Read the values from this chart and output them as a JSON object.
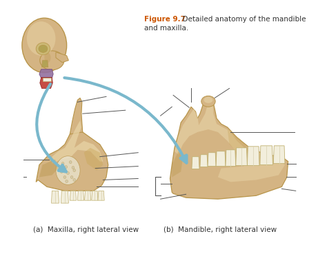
{
  "background_color": "#ffffff",
  "figure_label_color": "#cc5500",
  "figure_label_bold": "Figure 9.7",
  "figure_label_text": "  Detailed anatomy of the mandible\nand maxilla.",
  "caption_a": "(a)  Maxilla, right lateral view",
  "caption_b": "(b)  Mandible, right lateral view",
  "label_fontsize": 7,
  "caption_fontsize": 7.5,
  "figure_label_fontsize": 7.5,
  "bone_color": "#d4b483",
  "bone_color_dark": "#b8954a",
  "bone_color_light": "#e8d5a8",
  "bone_color_mid": "#c8a555",
  "tooth_color": "#f2eedc",
  "skull_bone": "#d4b483",
  "arrow_color": "#7ab8cc",
  "line_color": "#555555",
  "text_color": "#333333"
}
